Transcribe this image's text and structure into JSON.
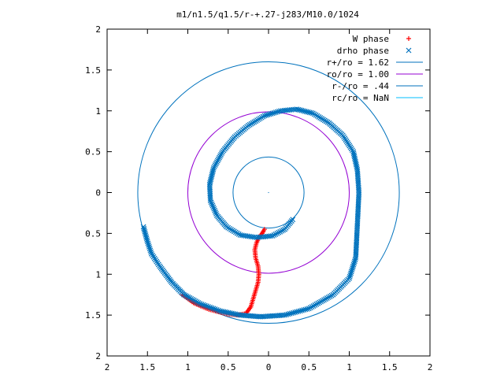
{
  "chart_data": {
    "type": "scatter",
    "title": "m1/n1.5/q1.5/r-+.27-j283/M10.0/1024",
    "xlabel": "",
    "ylabel": "",
    "xlim": [
      -2,
      2
    ],
    "ylim": [
      -2,
      2
    ],
    "x_ticks": [
      -2,
      -1.5,
      -1,
      -0.5,
      0,
      0.5,
      1,
      1.5,
      2
    ],
    "y_ticks": [
      -2,
      -1.5,
      -1,
      -0.5,
      0,
      0.5,
      1,
      1.5,
      2
    ],
    "x_tick_labels": [
      "2",
      "1.5",
      "1",
      "0.5",
      "0",
      "0.5",
      "1",
      "1.5",
      "2"
    ],
    "y_tick_labels": [
      "2",
      "1.5",
      "1",
      "0.5",
      "0",
      "0.5",
      "1",
      "1.5",
      "2"
    ],
    "grid": false,
    "legend_position": "top-right",
    "series": [
      {
        "name": "W phase",
        "marker": "plus",
        "color": "#ff0000",
        "points": [
          [
            -0.05,
            -0.45
          ],
          [
            -0.08,
            -0.5
          ],
          [
            -0.12,
            -0.55
          ],
          [
            -0.15,
            -0.62
          ],
          [
            -0.17,
            -0.7
          ],
          [
            -0.16,
            -0.8
          ],
          [
            -0.13,
            -0.9
          ],
          [
            -0.12,
            -1.0
          ],
          [
            -0.13,
            -1.1
          ],
          [
            -0.16,
            -1.2
          ],
          [
            -0.19,
            -1.3
          ],
          [
            -0.22,
            -1.4
          ],
          [
            -0.28,
            -1.48
          ],
          [
            -0.38,
            -1.5
          ],
          [
            -0.5,
            -1.49
          ],
          [
            -0.62,
            -1.46
          ],
          [
            -0.74,
            -1.43
          ],
          [
            -0.84,
            -1.39
          ],
          [
            -0.93,
            -1.35
          ],
          [
            -1.0,
            -1.3
          ],
          [
            -1.07,
            -1.25
          ]
        ]
      },
      {
        "name": "drho phase",
        "marker": "cross",
        "color": "#0072bd",
        "points": [
          [
            0.3,
            -0.33
          ],
          [
            0.2,
            -0.45
          ],
          [
            0.05,
            -0.53
          ],
          [
            -0.15,
            -0.55
          ],
          [
            -0.35,
            -0.52
          ],
          [
            -0.52,
            -0.42
          ],
          [
            -0.64,
            -0.28
          ],
          [
            -0.72,
            -0.1
          ],
          [
            -0.73,
            0.1
          ],
          [
            -0.68,
            0.3
          ],
          [
            -0.57,
            0.5
          ],
          [
            -0.42,
            0.68
          ],
          [
            -0.25,
            0.82
          ],
          [
            -0.05,
            0.94
          ],
          [
            0.15,
            1.0
          ],
          [
            0.35,
            1.02
          ],
          [
            0.55,
            0.97
          ],
          [
            0.75,
            0.85
          ],
          [
            0.92,
            0.7
          ],
          [
            1.05,
            0.5
          ],
          [
            1.1,
            0.28
          ],
          [
            1.12,
            0.0
          ],
          [
            1.1,
            -0.4
          ],
          [
            1.08,
            -0.8
          ],
          [
            1.0,
            -1.05
          ],
          [
            0.8,
            -1.25
          ],
          [
            0.5,
            -1.42
          ],
          [
            0.2,
            -1.5
          ],
          [
            -0.1,
            -1.52
          ],
          [
            -0.35,
            -1.5
          ],
          [
            -0.6,
            -1.45
          ],
          [
            -0.85,
            -1.36
          ],
          [
            -1.05,
            -1.25
          ],
          [
            -1.2,
            -1.1
          ],
          [
            -1.35,
            -0.9
          ],
          [
            -1.45,
            -0.75
          ],
          [
            -1.5,
            -0.6
          ],
          [
            -1.55,
            -0.42
          ]
        ]
      },
      {
        "name": "r+/ro = 1.62",
        "kind": "circle",
        "radius": 1.62,
        "color": "#0072bd"
      },
      {
        "name": "ro/ro = 1.00",
        "kind": "circle",
        "radius": 1.0,
        "color": "#9400d3"
      },
      {
        "name": "r-/ro = .44",
        "kind": "circle",
        "radius": 0.44,
        "color": "#0072bd"
      },
      {
        "name": "rc/ro = NaN",
        "kind": "circle",
        "radius": null,
        "color": "#00bfff"
      }
    ]
  }
}
